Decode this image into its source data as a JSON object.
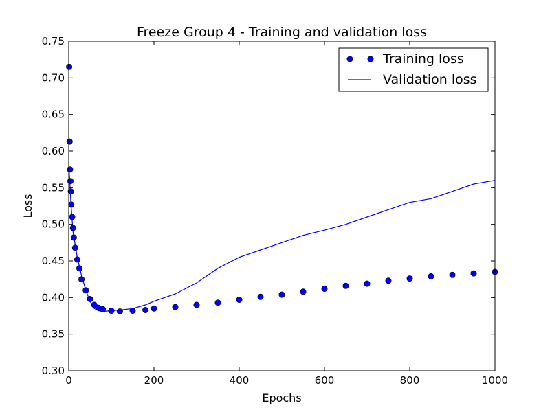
{
  "chart_data": {
    "type": "line",
    "title": "Freeze Group 4 - Training and validation loss",
    "xlabel": "Epochs",
    "ylabel": "Loss",
    "xlim": [
      0,
      1000
    ],
    "ylim": [
      0.3,
      0.75
    ],
    "x_ticks": [
      0,
      200,
      400,
      600,
      800,
      1000
    ],
    "y_ticks": [
      0.3,
      0.35,
      0.4,
      0.45,
      0.5,
      0.55,
      0.6,
      0.65,
      0.7,
      0.75
    ],
    "x_tick_labels": [
      "0",
      "200",
      "400",
      "600",
      "800",
      "1000"
    ],
    "y_tick_labels": [
      "0.30",
      "0.35",
      "0.40",
      "0.45",
      "0.50",
      "0.55",
      "0.60",
      "0.65",
      "0.70",
      "0.75"
    ],
    "grid": false,
    "legend_position": "top-right",
    "series": [
      {
        "name": "Training loss",
        "style": "markers",
        "color": "#0000ff",
        "x": [
          1,
          2,
          3,
          4,
          5,
          6,
          8,
          10,
          12,
          15,
          20,
          25,
          30,
          40,
          50,
          60,
          70,
          80,
          100,
          120,
          150,
          180,
          200,
          250,
          300,
          350,
          400,
          450,
          500,
          550,
          600,
          650,
          700,
          750,
          800,
          850,
          900,
          950,
          1000
        ],
        "y": [
          0.715,
          0.613,
          0.575,
          0.559,
          0.545,
          0.527,
          0.51,
          0.495,
          0.482,
          0.468,
          0.452,
          0.44,
          0.425,
          0.41,
          0.398,
          0.39,
          0.386,
          0.384,
          0.382,
          0.381,
          0.382,
          0.383,
          0.385,
          0.387,
          0.39,
          0.393,
          0.397,
          0.401,
          0.404,
          0.408,
          0.412,
          0.416,
          0.419,
          0.423,
          0.426,
          0.429,
          0.431,
          0.433,
          0.435
        ]
      },
      {
        "name": "Validation loss",
        "style": "line",
        "color": "#0000ff",
        "x": [
          0,
          5,
          10,
          20,
          30,
          40,
          50,
          60,
          70,
          80,
          100,
          120,
          150,
          180,
          200,
          250,
          300,
          350,
          400,
          450,
          500,
          550,
          600,
          650,
          700,
          750,
          800,
          850,
          900,
          950,
          1000
        ],
        "y": [
          0.585,
          0.53,
          0.49,
          0.455,
          0.43,
          0.41,
          0.395,
          0.385,
          0.382,
          0.381,
          0.382,
          0.383,
          0.385,
          0.39,
          0.395,
          0.405,
          0.42,
          0.44,
          0.455,
          0.465,
          0.475,
          0.485,
          0.492,
          0.5,
          0.51,
          0.52,
          0.53,
          0.535,
          0.545,
          0.555,
          0.56
        ]
      }
    ]
  }
}
